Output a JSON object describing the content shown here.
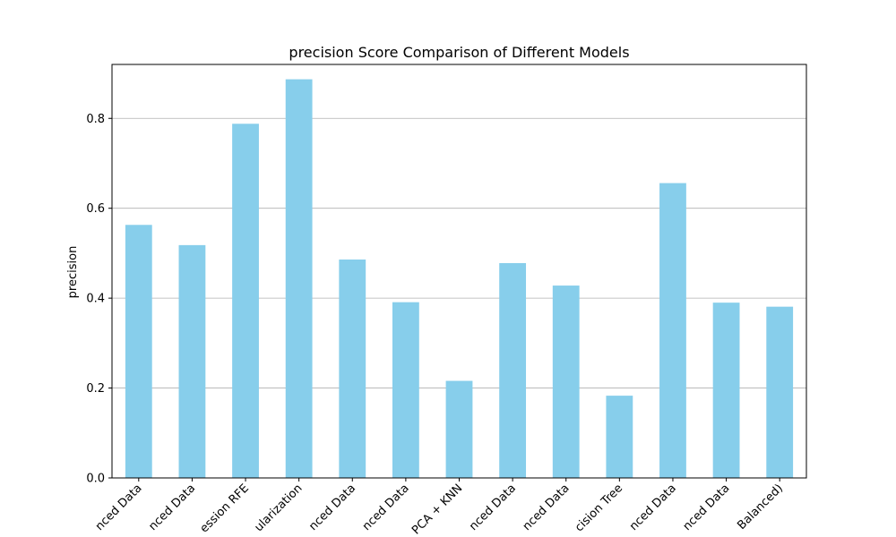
{
  "chart_data": {
    "type": "bar",
    "title": "precision Score Comparison of Different Models",
    "xlabel": "",
    "ylabel": "precision",
    "categories": [
      "nced Data",
      "nced Data",
      "ession RFE",
      "ularization",
      "nced Data",
      "nced Data",
      "PCA + KNN",
      "nced Data",
      "nced Data",
      "cision Tree",
      "nced Data",
      "nced Data",
      "Balanced)"
    ],
    "values": [
      0.563,
      0.518,
      0.788,
      0.887,
      0.486,
      0.391,
      0.216,
      0.478,
      0.428,
      0.183,
      0.656,
      0.39,
      0.381
    ],
    "ylim": [
      0,
      0.92
    ],
    "yticks": [
      0.0,
      0.2,
      0.4,
      0.6,
      0.8
    ],
    "ytick_labels": [
      "0.0",
      "0.2",
      "0.4",
      "0.6",
      "0.8"
    ],
    "grid": "y",
    "bar_color": "#87ceeb",
    "grid_color": "#b0b0b0",
    "legend": "none"
  }
}
